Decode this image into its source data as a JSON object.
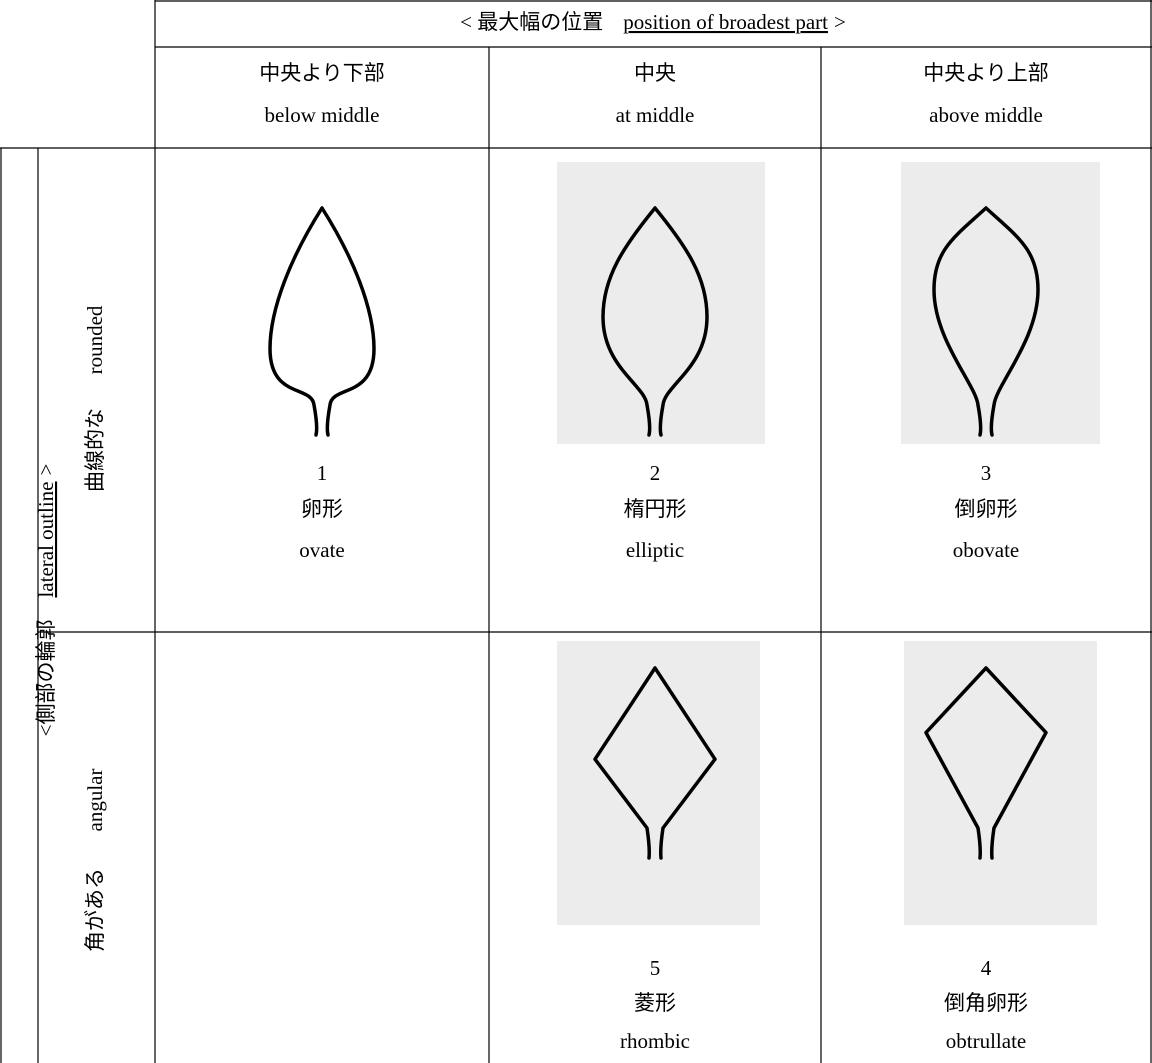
{
  "header": {
    "prefix": "< 最大幅の位置",
    "underlined": "position of broadest part",
    "suffix": ">"
  },
  "columns": [
    {
      "ja": "中央より下部",
      "en": "below middle"
    },
    {
      "ja": "中央",
      "en": "at middle"
    },
    {
      "ja": "中央より上部",
      "en": "above middle"
    }
  ],
  "side_label": {
    "prefix": "<側部の輪郭",
    "underlined": "lateral outline",
    "suffix": ">"
  },
  "rows": [
    {
      "label_ja": "曲線的な",
      "label_en": "rounded",
      "cells": [
        {
          "number": "1",
          "ja": "卵形",
          "en": "ovate"
        },
        {
          "number": "2",
          "ja": "楕円形",
          "en": "elliptic"
        },
        {
          "number": "3",
          "ja": "倒卵形",
          "en": "obovate"
        }
      ]
    },
    {
      "label_ja": "角がある",
      "label_en": "angular",
      "cells": [
        null,
        {
          "number": "5",
          "ja": "菱形",
          "en": "rhombic"
        },
        {
          "number": "4",
          "ja": "倒角卵形",
          "en": "obtrullate"
        }
      ]
    }
  ]
}
